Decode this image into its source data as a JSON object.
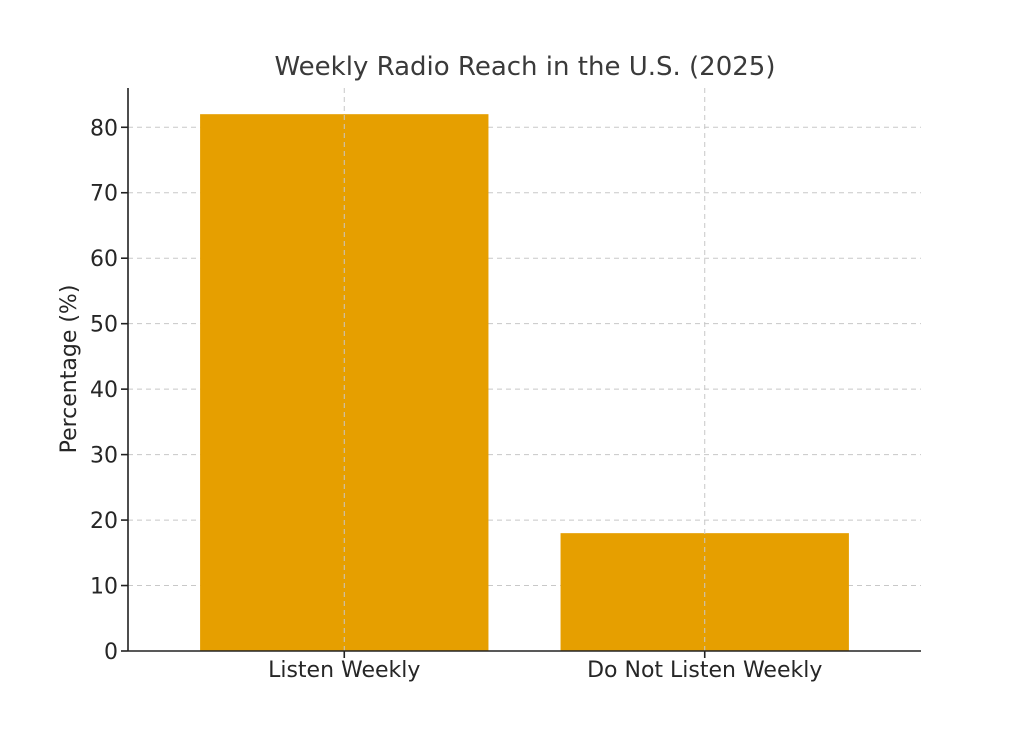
{
  "chart_data": {
    "type": "bar",
    "title": "Weekly Radio Reach in the U.S. (2025)",
    "xlabel": "",
    "ylabel": "Percentage (%)",
    "categories": [
      "Listen Weekly",
      "Do Not Listen Weekly"
    ],
    "values": [
      82,
      18
    ],
    "ylim": [
      0,
      86
    ],
    "yticks": [
      0,
      10,
      20,
      30,
      40,
      50,
      60,
      70,
      80
    ],
    "bar_color": "#E69F00",
    "grid": true,
    "legend": "none"
  }
}
